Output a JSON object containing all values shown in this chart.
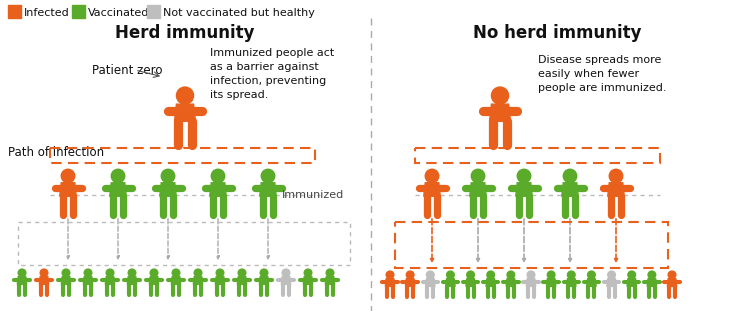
{
  "title_left": "Herd immunity",
  "title_right": "No herd immunity",
  "legend_items": [
    {
      "label": "Infected",
      "color": "#E8601C"
    },
    {
      "label": "Vaccinated",
      "color": "#5AAB2A"
    },
    {
      "label": "Not vaccinated but healthy",
      "color": "#C8C8C8"
    }
  ],
  "infected_color": "#E8601C",
  "vaccinated_color": "#5AAB2A",
  "healthy_color": "#BEBEBE",
  "bg_color": "#FFFFFF",
  "divider_color": "#AAAAAA",
  "annotation_left_1": "Patient zero",
  "annotation_left_2": "Path of infection",
  "annotation_left_3": "Immunized people act\nas a barrier against\ninfection, preventing\nits spread.",
  "annotation_left_4": "Immunized",
  "annotation_right_1": "Disease spreads more\neasily when fewer\npeople are immunized.",
  "left_row1_colors": [
    "#E8601C",
    "#5AAB2A",
    "#5AAB2A",
    "#5AAB2A",
    "#5AAB2A"
  ],
  "left_row2_colors": [
    "#5AAB2A",
    "#E8601C",
    "#5AAB2A",
    "#5AAB2A",
    "#5AAB2A",
    "#5AAB2A",
    "#5AAB2A",
    "#5AAB2A",
    "#5AAB2A",
    "#5AAB2A",
    "#5AAB2A",
    "#5AAB2A",
    "#BEBEBE",
    "#5AAB2A",
    "#5AAB2A"
  ],
  "right_row1_colors": [
    "#E8601C",
    "#5AAB2A",
    "#5AAB2A",
    "#5AAB2A",
    "#E8601C"
  ],
  "right_row2_colors": [
    "#E8601C",
    "#E8601C",
    "#BEBEBE",
    "#5AAB2A",
    "#5AAB2A",
    "#5AAB2A",
    "#5AAB2A",
    "#BEBEBE",
    "#5AAB2A",
    "#5AAB2A",
    "#5AAB2A",
    "#BEBEBE",
    "#5AAB2A",
    "#5AAB2A",
    "#E8601C"
  ]
}
